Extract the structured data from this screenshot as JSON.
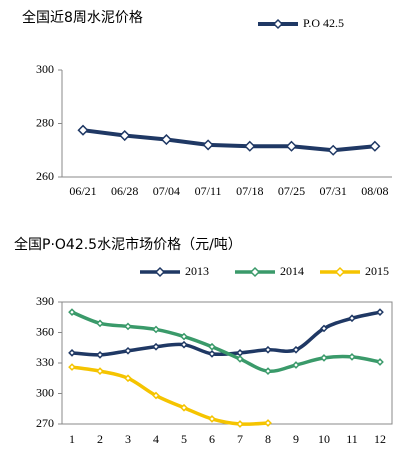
{
  "chart_data": [
    {
      "type": "line",
      "title": "全国近8周水泥价格",
      "categories": [
        "06/21",
        "06/28",
        "07/04",
        "07/11",
        "07/18",
        "07/25",
        "07/31",
        "08/08"
      ],
      "series": [
        {
          "name": "P.O 42.5",
          "color": "#1f3864",
          "values": [
            277.5,
            275.5,
            274,
            272,
            271.5,
            271.5,
            270,
            271.5
          ]
        }
      ],
      "ylim": [
        260,
        300
      ],
      "yticks": [
        260,
        280,
        300
      ]
    },
    {
      "type": "line",
      "title": "全国P·O42.5水泥市场价格（元/吨）",
      "categories": [
        "1",
        "2",
        "3",
        "4",
        "5",
        "6",
        "7",
        "8",
        "9",
        "10",
        "11",
        "12"
      ],
      "series": [
        {
          "name": "2013",
          "color": "#1f3864",
          "values": [
            340,
            338,
            342,
            346,
            348,
            339,
            340,
            343,
            343,
            364,
            374,
            380
          ]
        },
        {
          "name": "2014",
          "color": "#3a9a6a",
          "values": [
            380,
            369,
            366,
            363,
            356,
            346,
            334,
            322,
            328,
            335,
            336,
            331
          ]
        },
        {
          "name": "2015",
          "color": "#f5c400",
          "values": [
            326,
            322,
            315,
            298,
            286,
            275,
            270,
            271,
            null,
            null,
            null,
            null
          ]
        }
      ],
      "ylim": [
        270,
        390
      ],
      "yticks": [
        270,
        300,
        330,
        360,
        390
      ]
    }
  ]
}
